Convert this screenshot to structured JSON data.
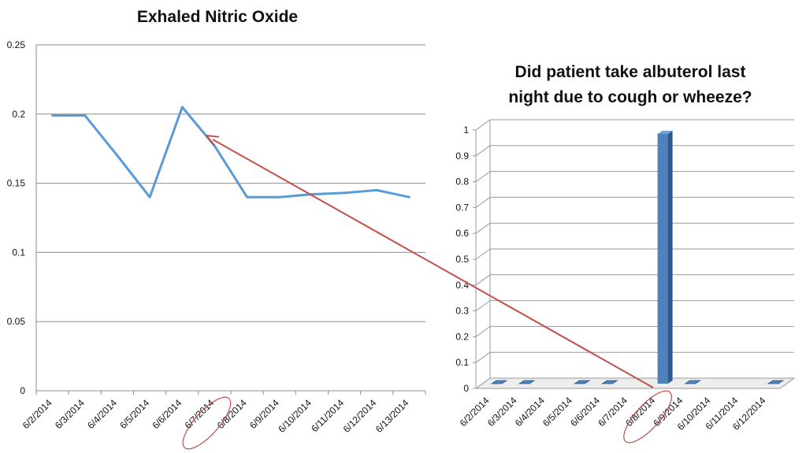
{
  "chart_data": [
    {
      "type": "line",
      "title": "Exhaled Nitric Oxide",
      "xlabel": "",
      "ylabel": "",
      "ylim": [
        0,
        0.25
      ],
      "yticks": [
        "0",
        "0.05",
        "0.1",
        "0.15",
        "0.2",
        "0.25"
      ],
      "categories": [
        "6/2/2014",
        "6/3/2014",
        "6/4/2014",
        "6/5/2014",
        "6/6/2014",
        "6/7/2014",
        "6/8/2014",
        "6/9/2014",
        "6/10/2014",
        "6/11/2014",
        "6/12/2014",
        "6/13/2014"
      ],
      "series": [
        {
          "values": [
            0.199,
            0.199,
            0.17,
            0.14,
            0.205,
            0.177,
            0.14,
            0.14,
            0.142,
            0.143,
            0.145,
            0.14
          ]
        }
      ],
      "grid": true,
      "legend": "none",
      "colors": {
        "line": "#5b9bd5"
      },
      "annotation": {
        "highlighted_category": "6/7/2014"
      }
    },
    {
      "type": "bar",
      "title": "Did patient take albuterol last night due to cough or wheeze?",
      "title_lines": [
        "Did patient take albuterol last",
        "night due to cough or wheeze?"
      ],
      "xlabel": "",
      "ylabel": "",
      "ylim": [
        0,
        1
      ],
      "yticks": [
        "0",
        "0.1",
        "0.2",
        "0.3",
        "0.4",
        "0.5",
        "0.6",
        "0.7",
        "0.8",
        "0.9",
        "1"
      ],
      "categories": [
        "6/2/2014",
        "6/3/2014",
        "6/4/2014",
        "6/5/2014",
        "6/6/2014",
        "6/7/2014",
        "6/8/2014",
        "6/9/2014",
        "6/10/2014",
        "6/11/2014",
        "6/12/2014"
      ],
      "values": [
        0,
        0,
        null,
        0,
        0,
        null,
        1,
        0,
        null,
        null,
        0
      ],
      "three_d": true,
      "grid": true,
      "legend": "none",
      "colors": {
        "bar": "#4f81bd",
        "bar_dark": "#2c5a8a",
        "bar_top": "#6fa0d8"
      },
      "annotation": {
        "highlighted_category": "6/8/2014"
      }
    }
  ],
  "annotation_arrow": {
    "from": "6/8/2014",
    "to": "6/7/2014",
    "color": "#c0504d"
  }
}
